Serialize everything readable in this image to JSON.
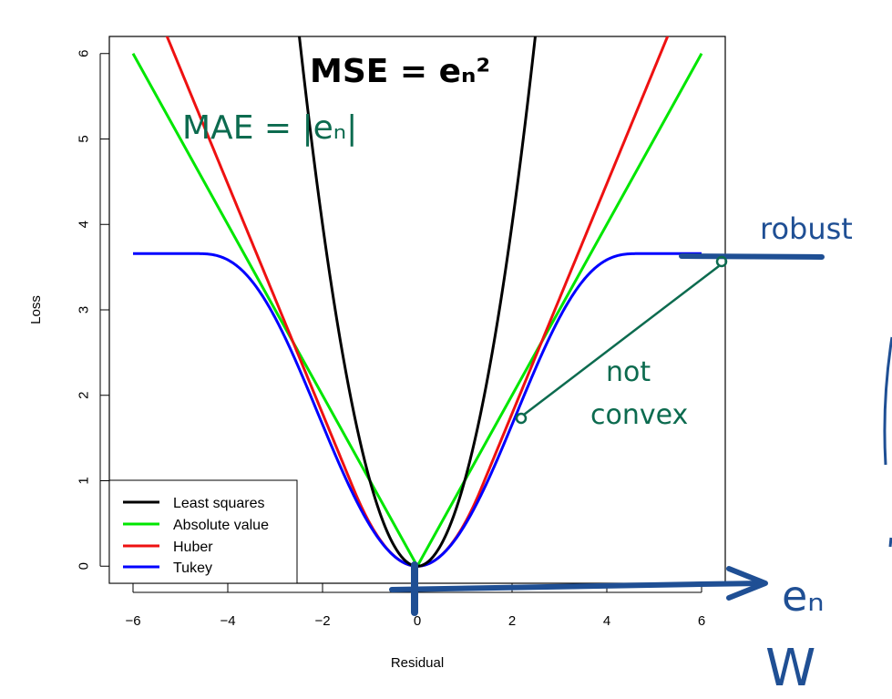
{
  "chart_data": {
    "type": "line",
    "xlabel": "Residual",
    "ylabel": "Loss",
    "xlim": [
      -6.5,
      6.5
    ],
    "ylim": [
      -0.2,
      6.2
    ],
    "x_ticks": [
      -6,
      -4,
      -2,
      0,
      2,
      4,
      6
    ],
    "y_ticks": [
      0,
      1,
      2,
      3,
      4,
      5,
      6
    ],
    "x_tick_labels": [
      "−6",
      "−4",
      "−2",
      "0",
      "2",
      "4",
      "6"
    ],
    "y_tick_labels": [
      "0",
      "1",
      "2",
      "3",
      "4",
      "5",
      "6"
    ],
    "huber_delta": 1.345,
    "tukey_c": 4.685,
    "series": [
      {
        "name": "Least squares",
        "color": "#000000",
        "function": "e^2"
      },
      {
        "name": "Absolute value",
        "color": "#00e600",
        "function": "|e|"
      },
      {
        "name": "Huber",
        "color": "#ee1111",
        "function": "huber"
      },
      {
        "name": "Tukey",
        "color": "#0000ff",
        "function": "tukey"
      }
    ],
    "legend": {
      "placement": "bottom-left"
    },
    "grid": false
  },
  "annotations": {
    "mse": "MSE = eₙ²",
    "mae": "MAE = |eₙ|",
    "robust": "robust",
    "not_convex": "not",
    "not_convex_2": "convex",
    "en_axis": "eₙ",
    "w_label": "W",
    "ink_green": "#0c6b4f",
    "ink_blue": "#1f4f94"
  }
}
